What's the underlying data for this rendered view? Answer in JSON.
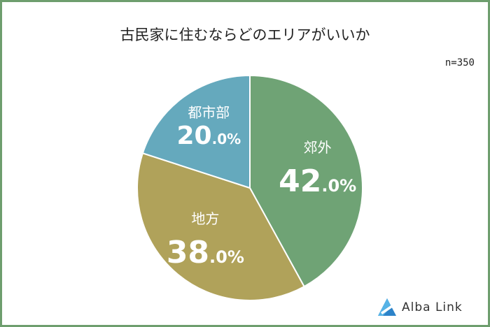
{
  "brand": {
    "name": "Alba Link"
  },
  "chart_data": {
    "type": "pie",
    "title": "古民家に住むならどのエリアがいいか",
    "note": "n=350",
    "slices": [
      {
        "label": "郊外",
        "value": 42.0,
        "color": "#6fa375"
      },
      {
        "label": "地方",
        "value": 38.0,
        "color": "#b0a25a"
      },
      {
        "label": "都市部",
        "value": 20.0,
        "color": "#65a9bd"
      }
    ]
  }
}
